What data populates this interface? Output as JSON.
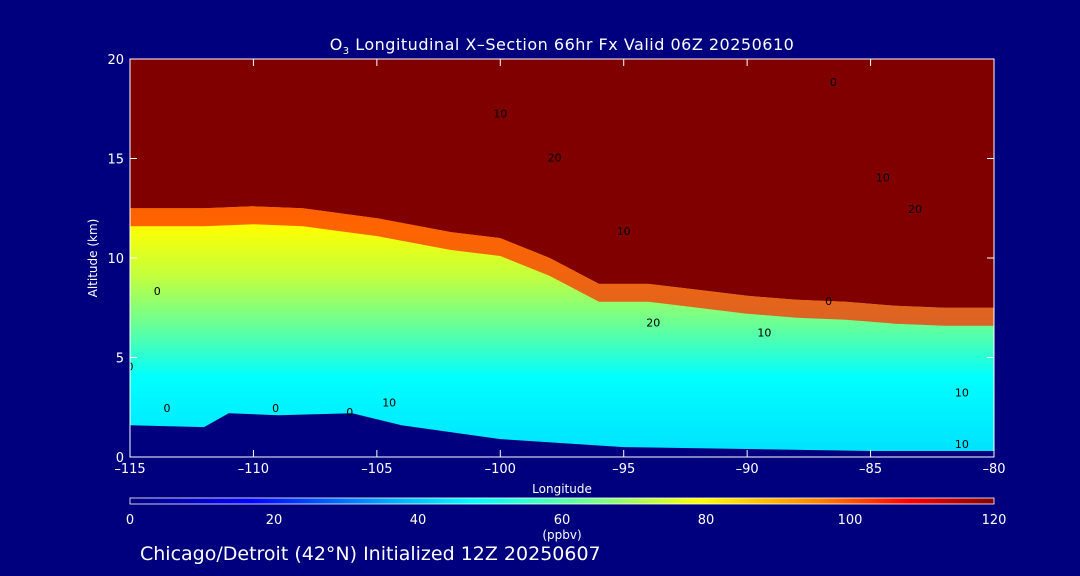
{
  "chart_data": {
    "type": "heatmap",
    "title_prefix": "O",
    "title_sub": "3",
    "title_rest": " Longitudinal X–Section 66hr  Fx Valid 06Z 20250610",
    "xlabel": "Longitude",
    "ylabel": "Altitude (km)",
    "xlim": [
      -115,
      -80
    ],
    "ylim": [
      0,
      20
    ],
    "xticks": [
      {
        "v": -115,
        "label": "–115"
      },
      {
        "v": -110,
        "label": "–110"
      },
      {
        "v": -105,
        "label": "–105"
      },
      {
        "v": -100,
        "label": "–100"
      },
      {
        "v": -95,
        "label": "–95"
      },
      {
        "v": -90,
        "label": "–90"
      },
      {
        "v": -85,
        "label": "–85"
      },
      {
        "v": -80,
        "label": "–80"
      }
    ],
    "yticks": [
      {
        "v": 0,
        "label": "0"
      },
      {
        "v": 5,
        "label": "5"
      },
      {
        "v": 10,
        "label": "10"
      },
      {
        "v": 15,
        "label": "15"
      },
      {
        "v": 20,
        "label": "20"
      }
    ],
    "colorbar": {
      "min": 0,
      "max": 120,
      "ticks": [
        0,
        20,
        40,
        60,
        80,
        100,
        120
      ],
      "unit": "(ppbv)"
    },
    "tropopause_height_km": [
      [
        -115,
        12.5
      ],
      [
        -112,
        12.5
      ],
      [
        -110,
        12.6
      ],
      [
        -108,
        12.5
      ],
      [
        -105,
        12.0
      ],
      [
        -102,
        11.3
      ],
      [
        -100,
        11.0
      ],
      [
        -98,
        10.0
      ],
      [
        -96,
        8.7
      ],
      [
        -94,
        8.7
      ],
      [
        -92,
        8.4
      ],
      [
        -90,
        8.1
      ],
      [
        -88,
        7.9
      ],
      [
        -86,
        7.8
      ],
      [
        -84,
        7.6
      ],
      [
        -82,
        7.5
      ],
      [
        -80,
        7.5
      ]
    ],
    "terrain_height_km": [
      [
        -115,
        1.6
      ],
      [
        -112,
        1.5
      ],
      [
        -111,
        2.2
      ],
      [
        -109,
        2.1
      ],
      [
        -106,
        2.2
      ],
      [
        -104,
        1.6
      ],
      [
        -100,
        0.9
      ],
      [
        -95,
        0.5
      ],
      [
        -90,
        0.4
      ],
      [
        -85,
        0.3
      ],
      [
        -80,
        0.3
      ]
    ],
    "contour_labels": [
      {
        "x": -113.9,
        "y": 8.3,
        "label": "0"
      },
      {
        "x": -115,
        "y": 4.5,
        "label": "0"
      },
      {
        "x": -113.5,
        "y": 2.4,
        "label": "0"
      },
      {
        "x": -109.1,
        "y": 2.4,
        "label": "0"
      },
      {
        "x": -106.1,
        "y": 2.2,
        "label": "0"
      },
      {
        "x": -104.5,
        "y": 2.7,
        "label": "10"
      },
      {
        "x": -100.0,
        "y": 17.2,
        "label": "10"
      },
      {
        "x": -97.8,
        "y": 15.0,
        "label": "20"
      },
      {
        "x": -95.0,
        "y": 11.3,
        "label": "10"
      },
      {
        "x": -93.8,
        "y": 6.7,
        "label": "20"
      },
      {
        "x": -89.3,
        "y": 6.2,
        "label": "10"
      },
      {
        "x": -86.5,
        "y": 18.8,
        "label": "0"
      },
      {
        "x": -86.7,
        "y": 7.8,
        "label": "0"
      },
      {
        "x": -84.5,
        "y": 14.0,
        "label": "10"
      },
      {
        "x": -83.2,
        "y": 12.4,
        "label": "20"
      },
      {
        "x": -81.3,
        "y": 3.2,
        "label": "10"
      },
      {
        "x": -81.3,
        "y": 0.6,
        "label": "10"
      }
    ]
  },
  "footer": "Chicago/Detroit (42°N) Initialized 12Z 20250607",
  "colors": {
    "background": "#00007f",
    "stratosphere": "#800000",
    "terrain": "#00007f",
    "ozone_scale": [
      "#00007f",
      "#0000ff",
      "#00aaff",
      "#00ffff",
      "#80ff80",
      "#ffff00",
      "#ff8000",
      "#ff0000",
      "#800000"
    ]
  }
}
